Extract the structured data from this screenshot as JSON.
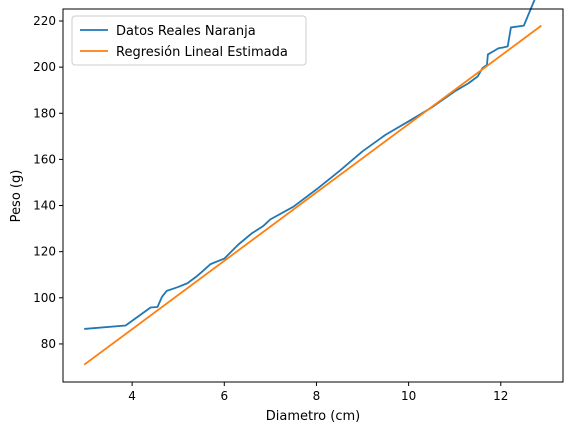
{
  "chart_data": {
    "type": "line",
    "title": "",
    "xlabel": "Diametro (cm)",
    "ylabel": "Peso (g)",
    "xlim": [
      2.5,
      13.35
    ],
    "ylim": [
      63.5,
      225.2
    ],
    "xticks": [
      4,
      6,
      8,
      10,
      12
    ],
    "yticks": [
      80,
      100,
      120,
      140,
      160,
      180,
      200,
      220
    ],
    "xtick_labels": [
      "4",
      "6",
      "8",
      "10",
      "12"
    ],
    "ytick_labels": [
      "80",
      "100",
      "120",
      "140",
      "160",
      "180",
      "200",
      "220"
    ],
    "grid": false,
    "legend_position": "upper-left",
    "series": [
      {
        "name": "Datos Reales Naranja",
        "color": "#1f77b4",
        "x": [
          2.96,
          3.86,
          4.4,
          4.55,
          4.65,
          4.75,
          4.9,
          5.0,
          5.2,
          5.4,
          5.5,
          5.6,
          5.7,
          6.0,
          6.3,
          6.6,
          6.85,
          7.0,
          7.5,
          8.0,
          8.5,
          9.0,
          9.5,
          10.0,
          10.5,
          11.0,
          11.3,
          11.5,
          11.6,
          11.7,
          11.72,
          11.85,
          11.95,
          12.05,
          12.15,
          12.22,
          12.5,
          12.75,
          12.88
        ],
        "y": [
          86.5,
          88.0,
          95.8,
          96.0,
          100.5,
          103.0,
          104.0,
          104.7,
          106.3,
          109.3,
          111.0,
          112.8,
          114.6,
          117.0,
          123.0,
          128.0,
          131.2,
          134.0,
          139.5,
          147.0,
          155.0,
          163.5,
          170.7,
          176.5,
          182.5,
          189.5,
          193.0,
          196.0,
          199.5,
          201.0,
          205.5,
          207.0,
          208.2,
          208.5,
          209.0,
          217.2,
          218.0,
          230.0,
          231.0
        ]
      },
      {
        "name": "Regresión Lineal Estimada",
        "color": "#ff7f0e",
        "x": [
          2.96,
          12.88
        ],
        "y": [
          71.0,
          218.0
        ]
      }
    ]
  }
}
